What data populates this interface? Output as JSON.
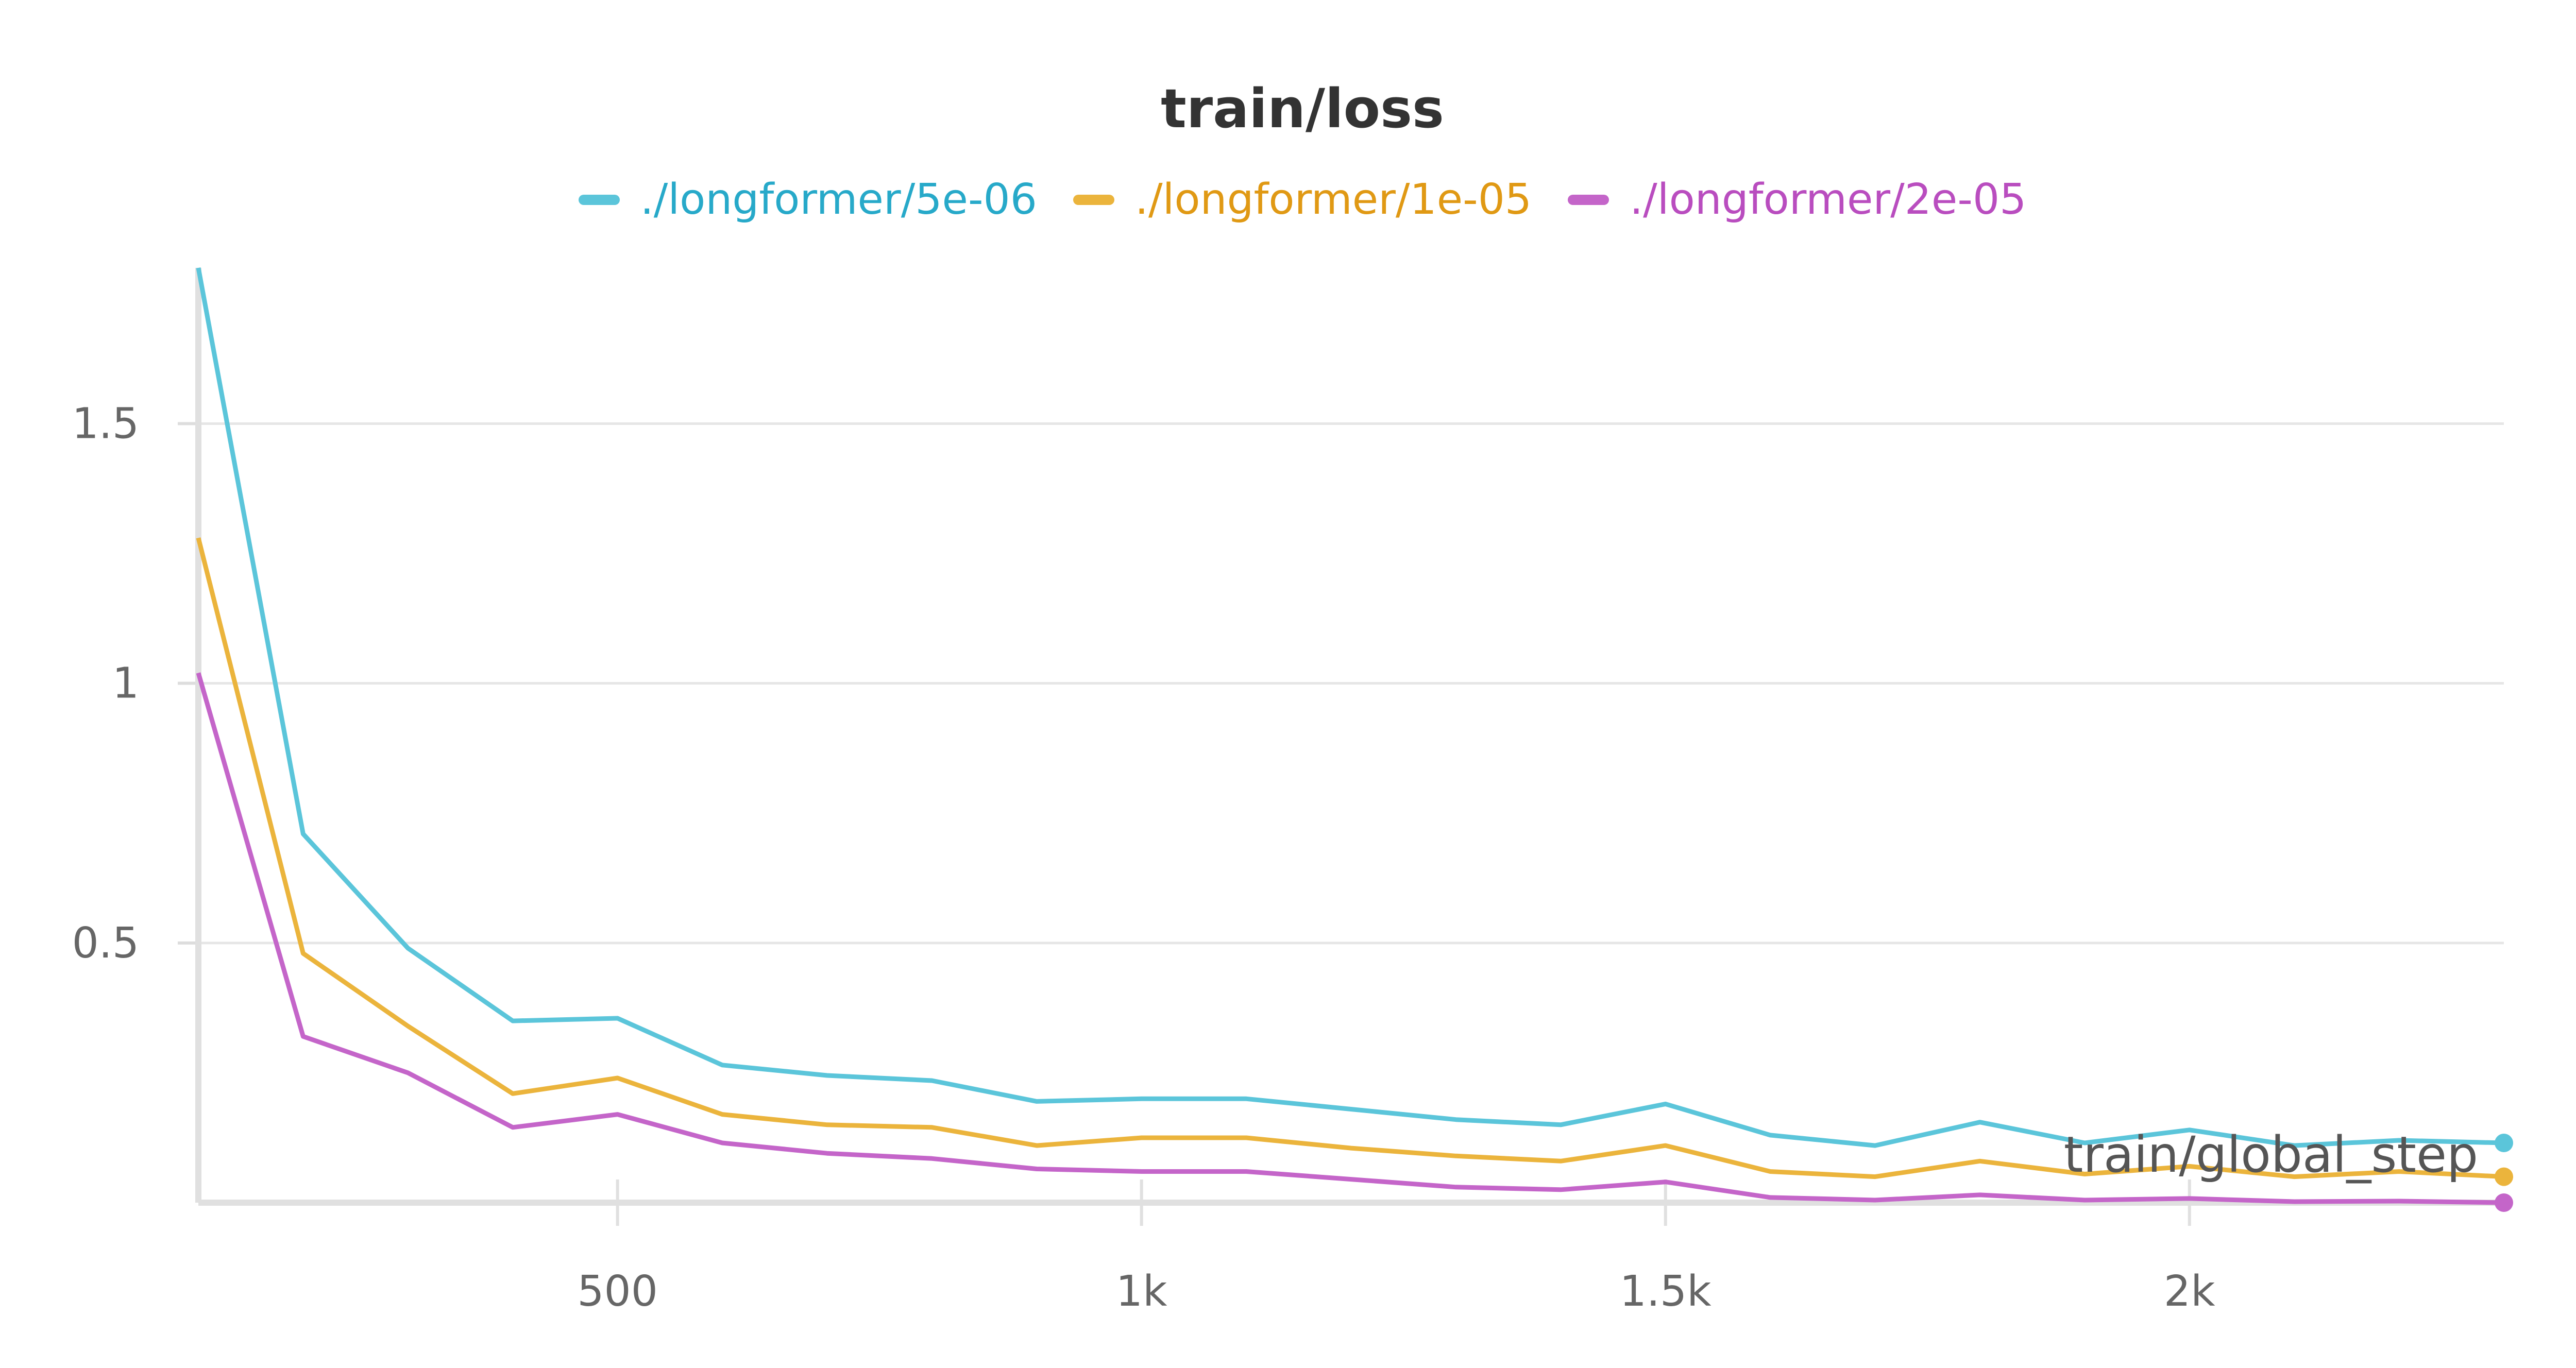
{
  "chart_data": {
    "type": "line",
    "title": "train/loss",
    "xlabel": "train/global_step",
    "ylabel": "",
    "xlim": [
      100,
      2300
    ],
    "ylim": [
      0,
      1.8
    ],
    "x_ticks": [
      500,
      1000,
      1500,
      2000
    ],
    "x_tick_labels": [
      "500",
      "1k",
      "1.5k",
      "2k"
    ],
    "y_ticks": [
      0.5,
      1,
      1.5
    ],
    "y_tick_labels": [
      "0.5",
      "1",
      "1.5"
    ],
    "grid": true,
    "legend_position": "top-center",
    "x": [
      100,
      200,
      300,
      400,
      500,
      600,
      700,
      800,
      900,
      1000,
      1100,
      1200,
      1300,
      1400,
      1500,
      1600,
      1700,
      1800,
      1900,
      2000,
      2100,
      2200,
      2300
    ],
    "series": [
      {
        "name": "./longformer/5e-06",
        "color": "#5bc5da",
        "text_color": "#27a9c9",
        "values": [
          1.8,
          0.71,
          0.49,
          0.35,
          0.355,
          0.265,
          0.245,
          0.235,
          0.195,
          0.2,
          0.2,
          0.18,
          0.16,
          0.15,
          0.19,
          0.13,
          0.11,
          0.155,
          0.115,
          0.14,
          0.11,
          0.12,
          0.115
        ]
      },
      {
        "name": "./longformer/1e-05",
        "color": "#ebb43c",
        "text_color": "#e09914",
        "values": [
          1.28,
          0.48,
          0.34,
          0.21,
          0.24,
          0.17,
          0.15,
          0.145,
          0.11,
          0.125,
          0.125,
          0.105,
          0.09,
          0.08,
          0.11,
          0.06,
          0.05,
          0.08,
          0.055,
          0.07,
          0.05,
          0.06,
          0.05
        ]
      },
      {
        "name": "./longformer/2e-05",
        "color": "#c465c9",
        "text_color": "#b94dbf",
        "values": [
          1.02,
          0.32,
          0.25,
          0.145,
          0.17,
          0.115,
          0.095,
          0.085,
          0.065,
          0.06,
          0.06,
          0.045,
          0.03,
          0.025,
          0.04,
          0.01,
          0.005,
          0.015,
          0.005,
          0.008,
          0.002,
          0.003,
          0.0
        ]
      }
    ]
  }
}
